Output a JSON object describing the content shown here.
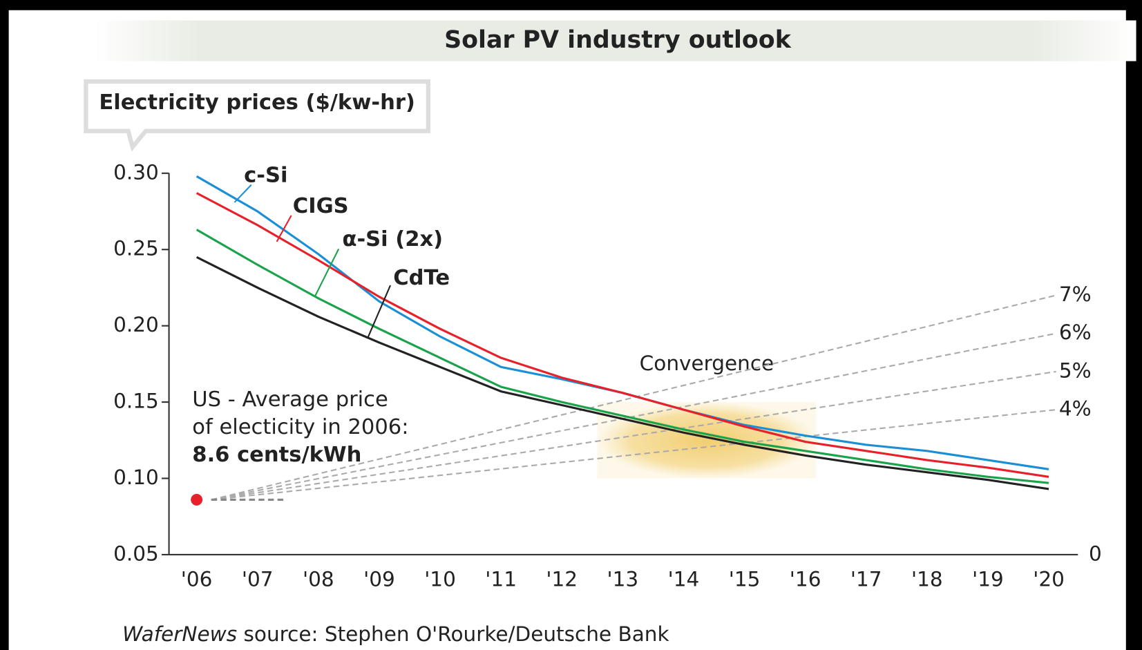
{
  "chart_data": {
    "type": "line",
    "title": "Solar PV industry outlook",
    "y_label": "Electricity prices ($/kw-hr)",
    "categories": [
      "'06",
      "'07",
      "'08",
      "'09",
      "'10",
      "'11",
      "'12",
      "'13",
      "'14",
      "'15",
      "'16",
      "'17",
      "'18",
      "'19",
      "'20"
    ],
    "ylim": [
      0.05,
      0.3
    ],
    "yticks": [
      {
        "value": 0.05,
        "label": "0.05"
      },
      {
        "value": 0.1,
        "label": "0.10"
      },
      {
        "value": 0.15,
        "label": "0.15"
      },
      {
        "value": 0.2,
        "label": "0.20"
      },
      {
        "value": 0.25,
        "label": "0.25"
      },
      {
        "value": 0.3,
        "label": "0.30"
      }
    ],
    "series": [
      {
        "name": "c-Si",
        "color": "#1a8fd6",
        "values": [
          0.298,
          0.275,
          0.247,
          0.216,
          0.193,
          0.173,
          0.165,
          0.156,
          0.145,
          0.135,
          0.128,
          0.122,
          0.118,
          0.112,
          0.106
        ]
      },
      {
        "name": "CIGS",
        "color": "#e8202a",
        "values": [
          0.287,
          0.266,
          0.243,
          0.219,
          0.198,
          0.179,
          0.166,
          0.156,
          0.145,
          0.134,
          0.124,
          0.118,
          0.112,
          0.107,
          0.101
        ]
      },
      {
        "name": "α-Si (2x)",
        "color": "#1aa34a",
        "values": [
          0.263,
          0.24,
          0.218,
          0.198,
          0.179,
          0.16,
          0.15,
          0.141,
          0.132,
          0.124,
          0.118,
          0.112,
          0.106,
          0.101,
          0.097
        ]
      },
      {
        "name": "CdTe",
        "color": "#222222",
        "values": [
          0.245,
          0.225,
          0.206,
          0.189,
          0.173,
          0.157,
          0.148,
          0.139,
          0.13,
          0.122,
          0.115,
          0.109,
          0.104,
          0.099,
          0.093
        ]
      }
    ],
    "us_price": {
      "value": 0.086,
      "color": "#e8202a",
      "lines": [
        "US - Average price",
        "of electicity in 2006:",
        "8.6 cents/kWh"
      ]
    },
    "projections": [
      {
        "name": "7%",
        "value": 0.22
      },
      {
        "name": "6%",
        "value": 0.195
      },
      {
        "name": "5%",
        "value": 0.17
      },
      {
        "name": "4%",
        "value": 0.145
      }
    ],
    "right_label": "0",
    "highlight": {
      "label": "Convergence",
      "from": "'13",
      "to": "'16",
      "ylim": [
        0.1,
        0.15
      ]
    },
    "source": [
      "WaferNews",
      " source: Stephen O'Rourke/Deutsche Bank"
    ]
  }
}
